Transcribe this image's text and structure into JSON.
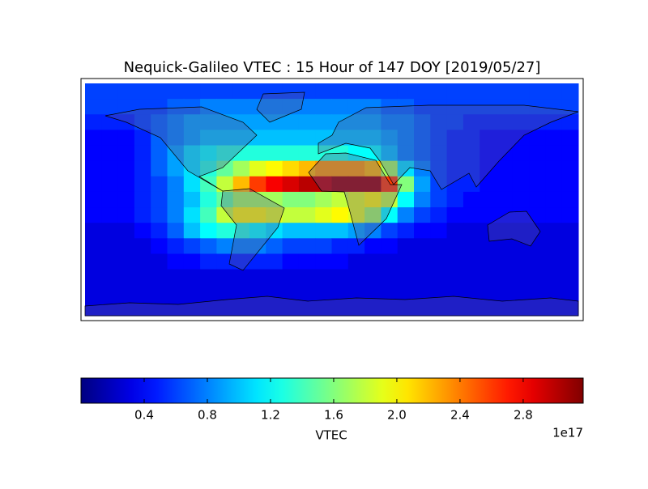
{
  "chart_data": {
    "type": "heatmap",
    "title": "Nequick-Galileo VTEC : 15 Hour of 147 DOY [2019/05/27]",
    "values": [
      [
        0.6,
        0.6,
        0.6,
        0.6,
        0.6,
        0.6,
        0.6,
        0.6,
        0.6,
        0.6,
        0.6,
        0.6,
        0.6,
        0.6,
        0.6,
        0.6,
        0.6,
        0.6,
        0.6,
        0.6,
        0.6,
        0.6,
        0.6,
        0.6,
        0.6,
        0.6,
        0.6,
        0.6,
        0.6,
        0.6
      ],
      [
        0.6,
        0.6,
        0.6,
        0.6,
        0.6,
        0.7,
        0.7,
        0.8,
        0.8,
        0.8,
        0.8,
        0.8,
        0.8,
        0.8,
        0.8,
        0.8,
        0.8,
        0.8,
        0.7,
        0.7,
        0.6,
        0.6,
        0.6,
        0.6,
        0.6,
        0.6,
        0.6,
        0.6,
        0.6,
        0.6
      ],
      [
        0.5,
        0.5,
        0.5,
        0.6,
        0.7,
        0.8,
        0.9,
        0.9,
        0.9,
        0.9,
        0.9,
        0.9,
        0.9,
        0.9,
        0.9,
        0.9,
        0.9,
        0.9,
        0.8,
        0.8,
        0.7,
        0.6,
        0.6,
        0.5,
        0.5,
        0.5,
        0.5,
        0.5,
        0.5,
        0.5
      ],
      [
        0.4,
        0.4,
        0.4,
        0.5,
        0.7,
        0.8,
        0.9,
        1.0,
        1.0,
        1.0,
        1.0,
        1.0,
        1.0,
        1.0,
        1.0,
        1.0,
        1.0,
        1.0,
        0.9,
        0.8,
        0.7,
        0.6,
        0.5,
        0.5,
        0.4,
        0.4,
        0.4,
        0.4,
        0.4,
        0.4
      ],
      [
        0.4,
        0.4,
        0.4,
        0.5,
        0.7,
        0.9,
        1.1,
        1.2,
        1.3,
        1.3,
        1.3,
        1.3,
        1.3,
        1.3,
        1.3,
        1.3,
        1.2,
        1.2,
        1.0,
        0.8,
        0.7,
        0.6,
        0.5,
        0.5,
        0.4,
        0.4,
        0.4,
        0.4,
        0.4,
        0.4
      ],
      [
        0.4,
        0.4,
        0.4,
        0.5,
        0.7,
        0.9,
        1.1,
        1.3,
        1.5,
        1.7,
        1.9,
        2.0,
        2.1,
        2.2,
        2.3,
        2.3,
        2.3,
        2.2,
        1.7,
        1.1,
        0.8,
        0.6,
        0.5,
        0.5,
        0.4,
        0.4,
        0.4,
        0.4,
        0.4,
        0.4
      ],
      [
        0.4,
        0.4,
        0.4,
        0.5,
        0.6,
        0.8,
        1.1,
        1.4,
        1.8,
        2.2,
        2.6,
        2.8,
        2.9,
        3.0,
        3.0,
        3.1,
        3.1,
        3.1,
        2.6,
        1.6,
        0.9,
        0.6,
        0.5,
        0.5,
        0.4,
        0.4,
        0.4,
        0.4,
        0.4,
        0.4
      ],
      [
        0.4,
        0.4,
        0.4,
        0.5,
        0.6,
        0.8,
        1.0,
        1.3,
        1.5,
        1.7,
        1.7,
        1.7,
        1.6,
        1.6,
        1.7,
        1.8,
        1.9,
        2.0,
        1.8,
        1.2,
        0.8,
        0.6,
        0.5,
        0.4,
        0.4,
        0.4,
        0.4,
        0.4,
        0.4,
        0.4
      ],
      [
        0.4,
        0.4,
        0.4,
        0.5,
        0.6,
        0.8,
        1.1,
        1.4,
        1.8,
        2.0,
        2.0,
        1.9,
        1.8,
        1.8,
        1.9,
        2.0,
        1.9,
        1.7,
        1.2,
        0.8,
        0.6,
        0.5,
        0.4,
        0.4,
        0.4,
        0.4,
        0.4,
        0.4,
        0.4,
        0.4
      ],
      [
        0.3,
        0.3,
        0.3,
        0.4,
        0.5,
        0.7,
        1.0,
        1.2,
        1.3,
        1.3,
        1.2,
        1.1,
        1.0,
        1.0,
        1.0,
        1.0,
        0.9,
        0.8,
        0.6,
        0.5,
        0.4,
        0.4,
        0.3,
        0.3,
        0.3,
        0.3,
        0.3,
        0.3,
        0.3,
        0.3
      ],
      [
        0.3,
        0.3,
        0.3,
        0.3,
        0.4,
        0.5,
        0.6,
        0.7,
        0.8,
        0.8,
        0.8,
        0.7,
        0.6,
        0.6,
        0.6,
        0.5,
        0.5,
        0.4,
        0.4,
        0.3,
        0.3,
        0.3,
        0.3,
        0.3,
        0.3,
        0.3,
        0.3,
        0.3,
        0.3,
        0.3
      ],
      [
        0.3,
        0.3,
        0.3,
        0.3,
        0.3,
        0.4,
        0.4,
        0.5,
        0.5,
        0.5,
        0.5,
        0.5,
        0.4,
        0.4,
        0.4,
        0.4,
        0.3,
        0.3,
        0.3,
        0.3,
        0.3,
        0.3,
        0.3,
        0.3,
        0.3,
        0.3,
        0.3,
        0.3,
        0.3,
        0.3
      ],
      [
        0.3,
        0.3,
        0.3,
        0.3,
        0.3,
        0.3,
        0.3,
        0.3,
        0.3,
        0.3,
        0.3,
        0.3,
        0.3,
        0.3,
        0.3,
        0.3,
        0.3,
        0.3,
        0.3,
        0.3,
        0.3,
        0.3,
        0.3,
        0.3,
        0.3,
        0.3,
        0.3,
        0.3,
        0.3,
        0.3
      ],
      [
        0.3,
        0.3,
        0.3,
        0.3,
        0.3,
        0.3,
        0.3,
        0.3,
        0.3,
        0.3,
        0.3,
        0.3,
        0.3,
        0.3,
        0.3,
        0.3,
        0.3,
        0.3,
        0.3,
        0.3,
        0.3,
        0.3,
        0.3,
        0.3,
        0.3,
        0.3,
        0.3,
        0.3,
        0.3,
        0.3
      ],
      [
        0.3,
        0.3,
        0.3,
        0.3,
        0.3,
        0.3,
        0.3,
        0.3,
        0.3,
        0.3,
        0.3,
        0.3,
        0.3,
        0.3,
        0.3,
        0.3,
        0.3,
        0.3,
        0.3,
        0.3,
        0.3,
        0.3,
        0.3,
        0.3,
        0.3,
        0.3,
        0.3,
        0.3,
        0.3,
        0.3
      ]
    ],
    "colorbar": {
      "label": "VTEC",
      "offset_label": "1e17",
      "lim": [
        0,
        3.18
      ],
      "ticks": [
        0.4,
        0.8,
        1.2,
        1.6,
        {
          "value": 2,
          "label": "2.0"
        },
        2.4,
        2.8
      ],
      "colormap": "jet"
    }
  }
}
